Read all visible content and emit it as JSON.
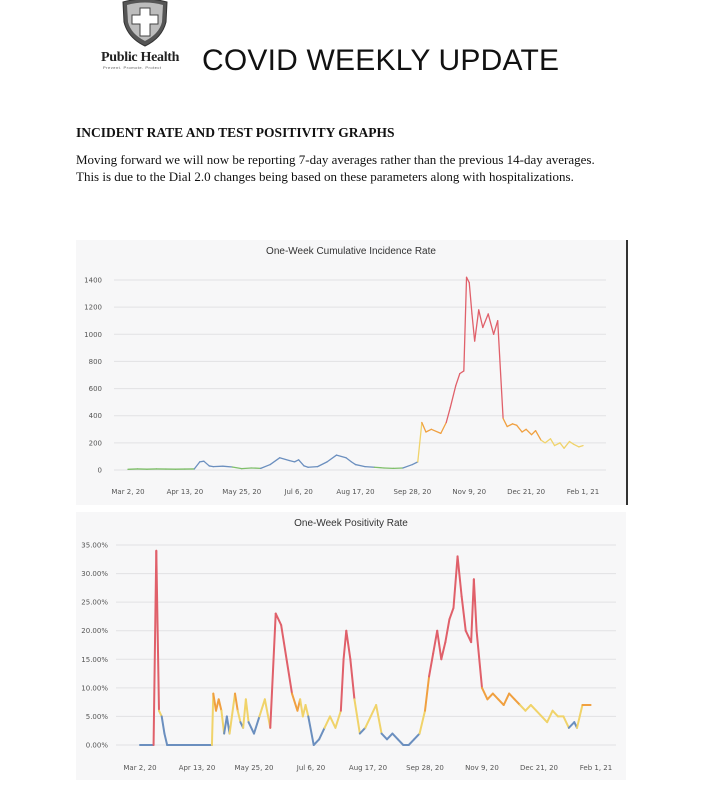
{
  "header": {
    "logo_name": "Public Health",
    "logo_tagline": "Prevent. Promote. Protect",
    "title": "COVID WEEKLY UPDATE"
  },
  "section": {
    "heading": "INCIDENT RATE AND TEST POSITIVITY GRAPHS",
    "paragraph": "Moving forward we will now be reporting 7-day averages rather than the previous 14-day averages. This is due to the Dial 2.0 changes being based on these parameters along with hospitalizations."
  },
  "colors": {
    "low": "#6b8fbf",
    "green": "#7fbf6a",
    "mid": "#f0d36a",
    "orange": "#f0a040",
    "high": "#e0606a"
  },
  "chart_data": [
    {
      "type": "line",
      "title": "One-Week Cumulative Incidence Rate",
      "xlabel": "",
      "ylabel": "",
      "ylim": [
        0,
        1400
      ],
      "yticks": [
        "0",
        "200",
        "400",
        "600",
        "800",
        "1000",
        "1200",
        "1400"
      ],
      "xticks": [
        "Mar 2, 20",
        "Apr 13, 20",
        "May 25, 20",
        "Jul 6, 20",
        "Aug 17, 20",
        "Sep 28, 20",
        "Nov 9, 20",
        "Dec 21, 20",
        "Feb 1, 21"
      ],
      "grid": true,
      "x_days": [
        0,
        7,
        14,
        21,
        28,
        35,
        42,
        49,
        53,
        56,
        60,
        63,
        70,
        77,
        84,
        91,
        98,
        105,
        112,
        119,
        123,
        126,
        130,
        133,
        140,
        147,
        154,
        161,
        165,
        168,
        175,
        182,
        189,
        196,
        203,
        210,
        214,
        217,
        220,
        224,
        231,
        235,
        238,
        242,
        245,
        248,
        250,
        252,
        254,
        256,
        259,
        262,
        266,
        270,
        273,
        277,
        280,
        284,
        287,
        291,
        294,
        298,
        301,
        305,
        308,
        312,
        315,
        319,
        322,
        326,
        329,
        333,
        336
      ],
      "values": [
        5,
        8,
        6,
        8,
        7,
        6,
        7,
        8,
        60,
        65,
        30,
        25,
        28,
        22,
        10,
        15,
        12,
        40,
        90,
        70,
        60,
        75,
        30,
        20,
        25,
        60,
        110,
        90,
        60,
        40,
        25,
        20,
        15,
        12,
        15,
        40,
        60,
        350,
        280,
        300,
        270,
        350,
        460,
        620,
        710,
        730,
        1420,
        1380,
        1150,
        950,
        1180,
        1050,
        1150,
        1000,
        1100,
        380,
        320,
        340,
        330,
        280,
        300,
        260,
        290,
        220,
        200,
        230,
        180,
        200,
        160,
        210,
        190,
        170,
        180
      ]
    },
    {
      "type": "line",
      "title": "One-Week Positivity Rate",
      "xlabel": "",
      "ylabel": "",
      "ylim": [
        0,
        35
      ],
      "yticks": [
        "0.00%",
        "5.00%",
        "10.00%",
        "15.00%",
        "20.00%",
        "25.00%",
        "30.00%",
        "35.00%"
      ],
      "xticks": [
        "Mar 2, 20",
        "Apr 13, 20",
        "May 25, 20",
        "Jul 6, 20",
        "Aug 17, 20",
        "Sep 28, 20",
        "Nov 9, 20",
        "Dec 21, 20",
        "Feb 1, 21"
      ],
      "grid": true,
      "x_days": [
        0,
        10,
        12,
        14,
        16,
        18,
        20,
        53,
        54,
        56,
        58,
        60,
        62,
        64,
        66,
        70,
        72,
        74,
        76,
        78,
        80,
        84,
        88,
        92,
        96,
        100,
        104,
        108,
        112,
        116,
        118,
        120,
        122,
        124,
        128,
        132,
        136,
        140,
        144,
        148,
        150,
        152,
        155,
        158,
        162,
        166,
        170,
        174,
        178,
        182,
        186,
        190,
        194,
        198,
        202,
        206,
        210,
        213,
        216,
        219,
        222,
        225,
        228,
        231,
        234,
        237,
        240,
        244,
        246,
        248,
        252,
        256,
        260,
        264,
        268,
        272,
        276,
        280,
        284,
        288,
        292,
        296,
        300,
        304,
        308,
        312,
        316,
        320,
        322,
        324,
        326,
        328,
        332
      ],
      "values": [
        0,
        0,
        34,
        6,
        5,
        2,
        0,
        0,
        9,
        6,
        8,
        6,
        2,
        5,
        2,
        9,
        6,
        4,
        3,
        8,
        4,
        2,
        5,
        8,
        3,
        23,
        21,
        15,
        9,
        6,
        8,
        5,
        7,
        5,
        0,
        1,
        3,
        5,
        3,
        6,
        15,
        20,
        15,
        8,
        2,
        3,
        5,
        7,
        2,
        1,
        2,
        1,
        0,
        0,
        1,
        2,
        6,
        12,
        16,
        20,
        15,
        18,
        22,
        24,
        33,
        26,
        20,
        18,
        29,
        20,
        10,
        8,
        9,
        8,
        7,
        9,
        8,
        7,
        6,
        7,
        6,
        5,
        4,
        6,
        5,
        5,
        3,
        4,
        3,
        5,
        7,
        7,
        7
      ]
    }
  ]
}
